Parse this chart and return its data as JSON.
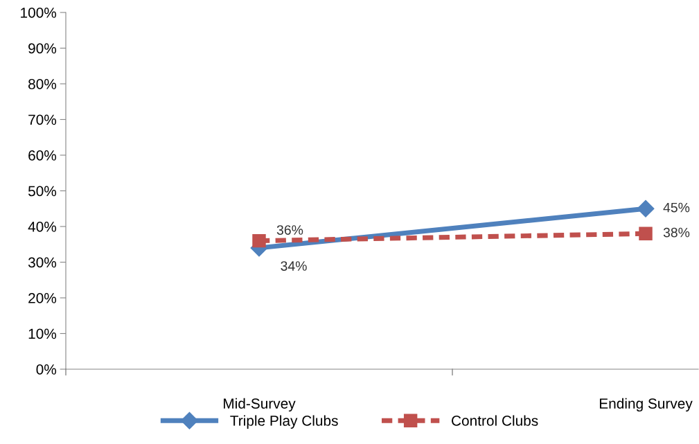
{
  "chart_data": {
    "type": "line",
    "categories": [
      "Mid-Survey",
      "Ending Survey"
    ],
    "series": [
      {
        "name": "Triple Play Clubs",
        "color": "#4f81bd",
        "values": [
          34,
          45
        ],
        "marker": "diamond",
        "line_style": "solid",
        "value_labels": [
          "34%",
          "45%"
        ]
      },
      {
        "name": "Control Clubs",
        "color": "#c0504d",
        "values": [
          36,
          38
        ],
        "marker": "square",
        "line_style": "dashed",
        "value_labels": [
          "36%",
          "38%"
        ]
      }
    ],
    "ylim": [
      0,
      100
    ],
    "yticks": [
      {
        "value": 0,
        "label": "0%"
      },
      {
        "value": 10,
        "label": "10%"
      },
      {
        "value": 20,
        "label": "20%"
      },
      {
        "value": 30,
        "label": "30%"
      },
      {
        "value": 40,
        "label": "40%"
      },
      {
        "value": 50,
        "label": "50%"
      },
      {
        "value": 60,
        "label": "60%"
      },
      {
        "value": 70,
        "label": "70%"
      },
      {
        "value": 80,
        "label": "80%"
      },
      {
        "value": 90,
        "label": "90%"
      },
      {
        "value": 100,
        "label": "100%"
      }
    ],
    "grid": false,
    "legend": "bottom"
  }
}
